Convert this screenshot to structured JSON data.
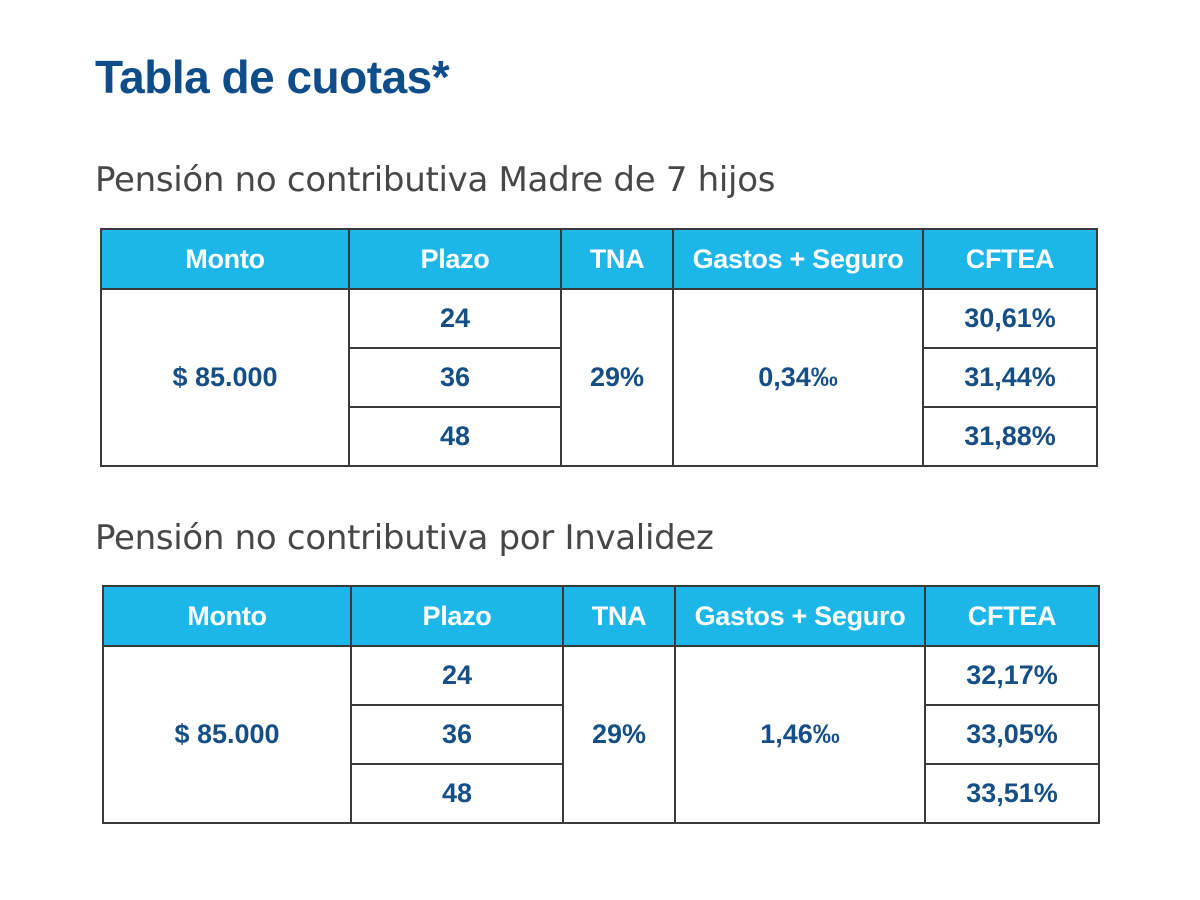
{
  "page_title": "Tabla de cuotas*",
  "headers": {
    "monto": "Monto",
    "plazo": "Plazo",
    "tna": "TNA",
    "gastos": "Gastos + Seguro",
    "cftea": "CFTEA"
  },
  "tables": [
    {
      "title": "Pensión no contributiva Madre de 7 hijos",
      "monto": "$ 85.000",
      "tna": "29%",
      "gastos": "0,34‰",
      "rows": [
        {
          "plazo": "24",
          "cftea": "30,61%"
        },
        {
          "plazo": "36",
          "cftea": "31,44%"
        },
        {
          "plazo": "48",
          "cftea": "31,88%"
        }
      ]
    },
    {
      "title": "Pensión no contributiva por Invalidez",
      "monto": "$ 85.000",
      "tna": "29%",
      "gastos": "1,46‰",
      "rows": [
        {
          "plazo": "24",
          "cftea": "32,17%"
        },
        {
          "plazo": "36",
          "cftea": "33,05%"
        },
        {
          "plazo": "48",
          "cftea": "33,51%"
        }
      ]
    }
  ],
  "colors": {
    "title": "#0f4c8a",
    "header_bg": "#1cb6e9",
    "header_text": "#ffffff",
    "cell_text": "#164f86",
    "section_text": "#474747",
    "border": "#3a3a3a"
  }
}
